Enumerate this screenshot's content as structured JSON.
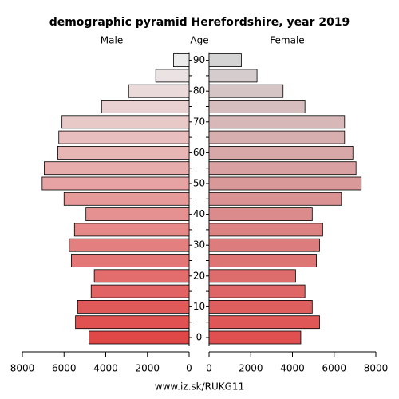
{
  "chart_data": {
    "type": "pyramid",
    "title": "demographic pyramid Herefordshire, year 2019",
    "left_label": "Male",
    "center_label": "Age",
    "right_label": "Female",
    "footer": "www.iz.sk/RUKG11",
    "categories": [
      "0",
      null,
      "10",
      null,
      "20",
      null,
      "30",
      null,
      "40",
      null,
      "50",
      null,
      "60",
      null,
      "70",
      null,
      "80",
      null,
      "90"
    ],
    "series": [
      {
        "name": "Male",
        "side": "left",
        "colors": [
          "#e04848",
          "#ececec"
        ],
        "values": [
          4800,
          5450,
          5350,
          4700,
          4550,
          5650,
          5750,
          5500,
          4950,
          6000,
          7050,
          6950,
          6300,
          6250,
          6100,
          4200,
          2900,
          1600,
          750
        ]
      },
      {
        "name": "Female",
        "side": "right",
        "colors": [
          "#e05050",
          "#d4d4d4"
        ],
        "values": [
          4400,
          5300,
          4950,
          4600,
          4150,
          5150,
          5300,
          5450,
          4950,
          6350,
          7300,
          7050,
          6900,
          6500,
          6500,
          4600,
          3550,
          2300,
          1550
        ]
      }
    ],
    "xlim": [
      0,
      8000
    ],
    "xticks": [
      0,
      2000,
      4000,
      6000,
      8000
    ]
  }
}
